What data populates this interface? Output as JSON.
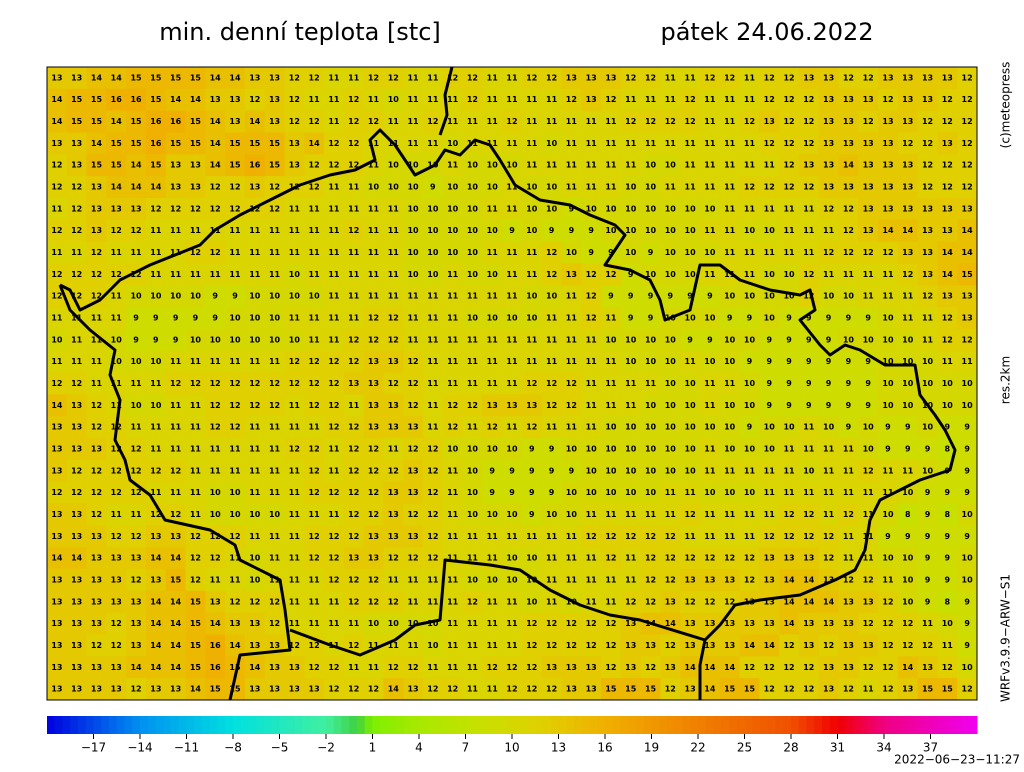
{
  "header": {
    "title": "min. denní teplota [stc]",
    "date": "pátek 24.06.2022"
  },
  "side": {
    "copyright": "(c)meteopress",
    "resolution": "res.2km",
    "model": "WRFv3.9.9−ARW−S1"
  },
  "map": {
    "grid": [
      [
        13,
        13,
        14,
        14,
        15,
        15,
        15,
        15,
        14,
        14,
        13,
        13,
        12,
        12,
        11,
        11,
        12,
        12,
        11,
        11,
        12,
        12,
        11,
        11,
        12,
        12,
        13,
        13,
        13,
        12,
        12,
        11,
        11,
        12,
        12,
        11,
        12,
        12,
        13,
        13,
        12,
        12,
        13,
        13,
        13,
        13,
        12
      ],
      [
        14,
        15,
        15,
        16,
        16,
        15,
        14,
        14,
        13,
        13,
        12,
        13,
        12,
        11,
        11,
        12,
        11,
        10,
        11,
        11,
        11,
        12,
        11,
        11,
        11,
        11,
        12,
        13,
        12,
        11,
        11,
        11,
        12,
        11,
        11,
        11,
        12,
        12,
        12,
        13,
        13,
        13,
        12,
        13,
        13,
        12,
        12
      ],
      [
        14,
        15,
        15,
        14,
        15,
        16,
        16,
        15,
        14,
        13,
        14,
        13,
        12,
        12,
        11,
        12,
        12,
        11,
        11,
        12,
        11,
        11,
        11,
        12,
        11,
        11,
        11,
        11,
        11,
        12,
        12,
        12,
        12,
        11,
        11,
        12,
        13,
        12,
        12,
        13,
        13,
        12,
        13,
        13,
        12,
        12,
        12
      ],
      [
        13,
        13,
        14,
        15,
        15,
        16,
        15,
        15,
        14,
        15,
        15,
        15,
        13,
        14,
        12,
        12,
        11,
        11,
        11,
        11,
        10,
        11,
        11,
        11,
        11,
        10,
        11,
        11,
        11,
        11,
        11,
        11,
        11,
        11,
        11,
        11,
        12,
        12,
        12,
        13,
        13,
        13,
        13,
        12,
        12,
        13,
        12
      ],
      [
        12,
        13,
        15,
        15,
        14,
        15,
        13,
        13,
        14,
        15,
        16,
        15,
        13,
        12,
        12,
        12,
        11,
        10,
        10,
        10,
        11,
        10,
        10,
        10,
        11,
        11,
        11,
        11,
        11,
        11,
        10,
        10,
        11,
        11,
        11,
        11,
        11,
        12,
        13,
        13,
        14,
        13,
        13,
        13,
        12,
        12,
        12
      ],
      [
        12,
        12,
        13,
        14,
        14,
        14,
        13,
        13,
        12,
        12,
        13,
        12,
        12,
        12,
        11,
        11,
        10,
        10,
        10,
        9,
        10,
        10,
        10,
        11,
        10,
        10,
        11,
        11,
        11,
        10,
        10,
        11,
        11,
        11,
        11,
        12,
        12,
        12,
        12,
        13,
        13,
        13,
        13,
        13,
        12,
        12,
        12
      ],
      [
        11,
        12,
        13,
        13,
        13,
        12,
        12,
        12,
        12,
        12,
        12,
        12,
        11,
        11,
        11,
        11,
        11,
        11,
        10,
        10,
        10,
        10,
        11,
        11,
        10,
        10,
        9,
        10,
        10,
        10,
        10,
        10,
        10,
        10,
        11,
        11,
        11,
        11,
        11,
        12,
        12,
        13,
        13,
        13,
        13,
        13,
        13
      ],
      [
        12,
        12,
        13,
        12,
        12,
        11,
        11,
        11,
        11,
        11,
        11,
        11,
        11,
        11,
        11,
        12,
        11,
        11,
        10,
        10,
        10,
        10,
        10,
        9,
        10,
        9,
        9,
        9,
        10,
        10,
        10,
        10,
        10,
        11,
        11,
        10,
        10,
        11,
        11,
        11,
        12,
        13,
        14,
        14,
        13,
        13,
        14
      ],
      [
        11,
        11,
        12,
        11,
        11,
        11,
        11,
        12,
        12,
        11,
        11,
        11,
        11,
        11,
        11,
        11,
        11,
        11,
        10,
        10,
        10,
        10,
        11,
        11,
        11,
        12,
        10,
        9,
        9,
        10,
        9,
        10,
        10,
        10,
        11,
        11,
        11,
        11,
        11,
        12,
        12,
        12,
        12,
        13,
        13,
        14,
        14
      ],
      [
        12,
        12,
        12,
        12,
        12,
        11,
        11,
        11,
        11,
        11,
        11,
        11,
        10,
        11,
        11,
        11,
        11,
        11,
        10,
        10,
        11,
        10,
        10,
        11,
        11,
        12,
        13,
        12,
        12,
        9,
        10,
        10,
        10,
        11,
        11,
        11,
        10,
        10,
        12,
        11,
        11,
        11,
        11,
        12,
        13,
        14,
        15
      ],
      [
        12,
        12,
        12,
        11,
        10,
        10,
        10,
        10,
        9,
        9,
        10,
        10,
        10,
        10,
        11,
        11,
        11,
        11,
        11,
        11,
        11,
        11,
        11,
        11,
        10,
        10,
        11,
        12,
        9,
        9,
        9,
        9,
        9,
        9,
        10,
        10,
        10,
        10,
        12,
        10,
        10,
        11,
        11,
        11,
        12,
        13,
        13
      ],
      [
        11,
        11,
        11,
        11,
        9,
        9,
        9,
        9,
        9,
        10,
        10,
        10,
        11,
        11,
        11,
        11,
        12,
        12,
        11,
        11,
        11,
        10,
        10,
        10,
        10,
        11,
        11,
        12,
        11,
        9,
        9,
        10,
        10,
        10,
        9,
        9,
        10,
        9,
        9,
        9,
        9,
        9,
        10,
        11,
        11,
        12,
        13
      ],
      [
        10,
        11,
        11,
        10,
        9,
        9,
        9,
        10,
        10,
        10,
        10,
        10,
        10,
        11,
        11,
        12,
        12,
        12,
        11,
        11,
        11,
        11,
        11,
        11,
        11,
        11,
        11,
        11,
        10,
        10,
        10,
        10,
        9,
        9,
        10,
        10,
        9,
        9,
        9,
        9,
        10,
        10,
        10,
        10,
        11,
        12,
        12
      ],
      [
        11,
        11,
        11,
        10,
        10,
        10,
        11,
        11,
        11,
        11,
        11,
        11,
        12,
        12,
        12,
        12,
        13,
        13,
        12,
        11,
        11,
        11,
        11,
        11,
        11,
        11,
        11,
        11,
        11,
        10,
        10,
        10,
        11,
        10,
        10,
        9,
        9,
        9,
        9,
        9,
        9,
        9,
        10,
        10,
        10,
        11,
        11
      ],
      [
        12,
        12,
        11,
        11,
        11,
        11,
        12,
        12,
        12,
        12,
        12,
        12,
        12,
        12,
        12,
        13,
        13,
        12,
        12,
        11,
        11,
        11,
        11,
        11,
        12,
        12,
        12,
        11,
        11,
        11,
        11,
        10,
        10,
        11,
        11,
        10,
        9,
        9,
        9,
        9,
        9,
        9,
        10,
        10,
        10,
        10,
        10
      ],
      [
        14,
        13,
        12,
        11,
        10,
        10,
        11,
        11,
        12,
        12,
        12,
        12,
        11,
        12,
        12,
        11,
        13,
        13,
        12,
        11,
        12,
        12,
        13,
        13,
        13,
        12,
        12,
        11,
        11,
        11,
        10,
        10,
        10,
        11,
        10,
        10,
        9,
        9,
        9,
        9,
        9,
        9,
        10,
        10,
        10,
        10,
        10
      ],
      [
        13,
        13,
        12,
        12,
        11,
        11,
        11,
        11,
        12,
        12,
        11,
        11,
        11,
        11,
        12,
        12,
        13,
        13,
        13,
        11,
        12,
        11,
        12,
        11,
        12,
        11,
        11,
        11,
        10,
        10,
        10,
        10,
        10,
        10,
        10,
        9,
        10,
        10,
        11,
        10,
        9,
        10,
        9,
        9,
        10,
        9,
        9
      ],
      [
        13,
        13,
        13,
        12,
        12,
        11,
        11,
        11,
        11,
        11,
        11,
        11,
        12,
        12,
        11,
        12,
        12,
        11,
        12,
        12,
        10,
        10,
        10,
        10,
        9,
        9,
        10,
        10,
        10,
        10,
        10,
        10,
        10,
        11,
        10,
        10,
        10,
        11,
        11,
        11,
        11,
        10,
        9,
        9,
        9,
        8,
        9
      ],
      [
        13,
        12,
        12,
        12,
        12,
        12,
        12,
        11,
        11,
        11,
        11,
        11,
        11,
        12,
        11,
        12,
        12,
        12,
        13,
        12,
        11,
        10,
        9,
        9,
        9,
        9,
        9,
        10,
        10,
        10,
        10,
        10,
        10,
        11,
        11,
        11,
        11,
        11,
        10,
        11,
        11,
        12,
        11,
        11,
        10,
        9,
        9
      ],
      [
        12,
        12,
        12,
        12,
        12,
        11,
        11,
        11,
        10,
        10,
        11,
        11,
        11,
        12,
        12,
        12,
        12,
        13,
        13,
        12,
        11,
        10,
        9,
        9,
        9,
        9,
        10,
        10,
        10,
        10,
        10,
        11,
        11,
        10,
        10,
        10,
        11,
        11,
        11,
        11,
        11,
        11,
        11,
        10,
        9,
        9,
        9
      ],
      [
        13,
        13,
        12,
        11,
        11,
        12,
        12,
        11,
        10,
        10,
        10,
        10,
        11,
        11,
        11,
        12,
        12,
        13,
        12,
        12,
        11,
        10,
        10,
        10,
        9,
        10,
        10,
        11,
        11,
        11,
        11,
        11,
        12,
        11,
        11,
        11,
        11,
        12,
        12,
        11,
        12,
        11,
        10,
        8,
        9,
        8,
        10
      ],
      [
        13,
        13,
        13,
        12,
        12,
        13,
        13,
        12,
        12,
        12,
        11,
        11,
        11,
        12,
        12,
        12,
        13,
        13,
        13,
        12,
        11,
        11,
        11,
        11,
        11,
        11,
        11,
        12,
        12,
        12,
        12,
        12,
        11,
        11,
        11,
        11,
        12,
        12,
        12,
        12,
        11,
        11,
        9,
        9,
        9,
        9,
        9
      ],
      [
        14,
        14,
        13,
        13,
        13,
        14,
        14,
        12,
        12,
        11,
        10,
        11,
        11,
        12,
        12,
        13,
        13,
        12,
        12,
        12,
        11,
        11,
        11,
        10,
        10,
        11,
        11,
        11,
        12,
        11,
        12,
        12,
        12,
        12,
        12,
        12,
        13,
        13,
        13,
        12,
        11,
        11,
        10,
        10,
        9,
        9,
        10
      ],
      [
        13,
        13,
        13,
        13,
        12,
        13,
        15,
        12,
        11,
        11,
        10,
        11,
        11,
        11,
        12,
        12,
        12,
        11,
        11,
        11,
        11,
        10,
        10,
        10,
        10,
        11,
        11,
        11,
        11,
        11,
        12,
        12,
        13,
        13,
        13,
        12,
        13,
        14,
        14,
        13,
        12,
        12,
        11,
        10,
        9,
        9,
        10
      ],
      [
        13,
        13,
        13,
        13,
        13,
        14,
        14,
        15,
        13,
        12,
        12,
        12,
        11,
        11,
        11,
        12,
        12,
        12,
        11,
        11,
        11,
        12,
        11,
        11,
        10,
        11,
        10,
        11,
        11,
        12,
        12,
        13,
        12,
        12,
        12,
        13,
        13,
        14,
        14,
        14,
        13,
        13,
        12,
        10,
        9,
        8,
        9
      ],
      [
        13,
        13,
        13,
        12,
        13,
        14,
        14,
        15,
        14,
        13,
        13,
        12,
        11,
        11,
        11,
        11,
        10,
        10,
        10,
        10,
        11,
        11,
        11,
        11,
        12,
        12,
        12,
        12,
        12,
        13,
        14,
        14,
        13,
        13,
        13,
        13,
        13,
        14,
        13,
        13,
        13,
        12,
        12,
        12,
        11,
        10,
        9
      ],
      [
        13,
        13,
        12,
        12,
        13,
        14,
        14,
        15,
        16,
        14,
        13,
        13,
        12,
        12,
        11,
        12,
        11,
        11,
        11,
        10,
        11,
        11,
        11,
        11,
        12,
        12,
        12,
        12,
        12,
        13,
        13,
        12,
        13,
        13,
        13,
        14,
        14,
        12,
        13,
        12,
        13,
        13,
        12,
        12,
        12,
        11,
        9
      ],
      [
        13,
        13,
        13,
        13,
        14,
        14,
        14,
        15,
        16,
        15,
        14,
        13,
        13,
        12,
        12,
        11,
        11,
        12,
        12,
        11,
        11,
        11,
        12,
        12,
        12,
        13,
        13,
        13,
        12,
        13,
        12,
        13,
        14,
        14,
        14,
        12,
        12,
        12,
        12,
        13,
        13,
        12,
        12,
        14,
        13,
        12,
        10
      ],
      [
        13,
        13,
        13,
        13,
        12,
        13,
        13,
        14,
        15,
        15,
        13,
        13,
        13,
        13,
        12,
        12,
        12,
        14,
        13,
        12,
        12,
        11,
        11,
        12,
        12,
        12,
        13,
        13,
        15,
        15,
        15,
        12,
        13,
        14,
        15,
        15,
        12,
        12,
        12,
        13,
        12,
        11,
        12,
        13,
        15,
        15,
        12
      ]
    ]
  },
  "colorbar": {
    "range": [
      -20,
      40
    ],
    "ticks": [
      {
        "value": -17,
        "label": "−17"
      },
      {
        "value": -14,
        "label": "−14"
      },
      {
        "value": -11,
        "label": "−11"
      },
      {
        "value": -8,
        "label": "−8"
      },
      {
        "value": -5,
        "label": "−5"
      },
      {
        "value": -2,
        "label": "−2"
      },
      1,
      4,
      7,
      10,
      13,
      16,
      19,
      22,
      25,
      28,
      31,
      34,
      37
    ]
  },
  "timestamp": "2022−06−23−11:27"
}
